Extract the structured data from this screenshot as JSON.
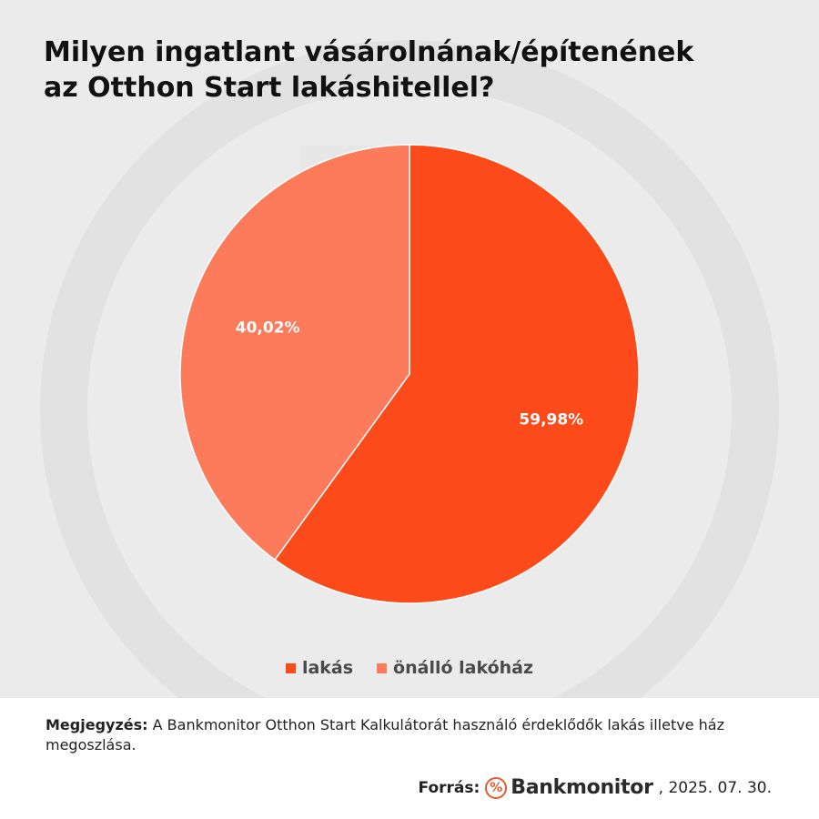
{
  "chart_data": {
    "type": "pie",
    "title_lines": [
      "Milyen ingatlant vásárolnának/építenének",
      "az Otthon Start lakáshitellel?"
    ],
    "categories": [
      "lakás",
      "önálló lakóház"
    ],
    "values": [
      59.98,
      40.02
    ],
    "data_labels": [
      "59,98%",
      "40,02%"
    ],
    "colors": [
      "#fc4a1a",
      "#fd7b5b"
    ],
    "legend_position": "bottom"
  },
  "note": {
    "label": "Megjegyzés:",
    "text": "A Bankmonitor Otthon Start Kalkulátorát használó érdeklődők lakás illetve ház megoszlása."
  },
  "source": {
    "label": "Forrás:",
    "brand": "Bankmonitor",
    "date": ", 2025. 07. 30.",
    "icon": "percent-icon",
    "icon_glyph": "%",
    "brand_color": "#e8592f"
  }
}
